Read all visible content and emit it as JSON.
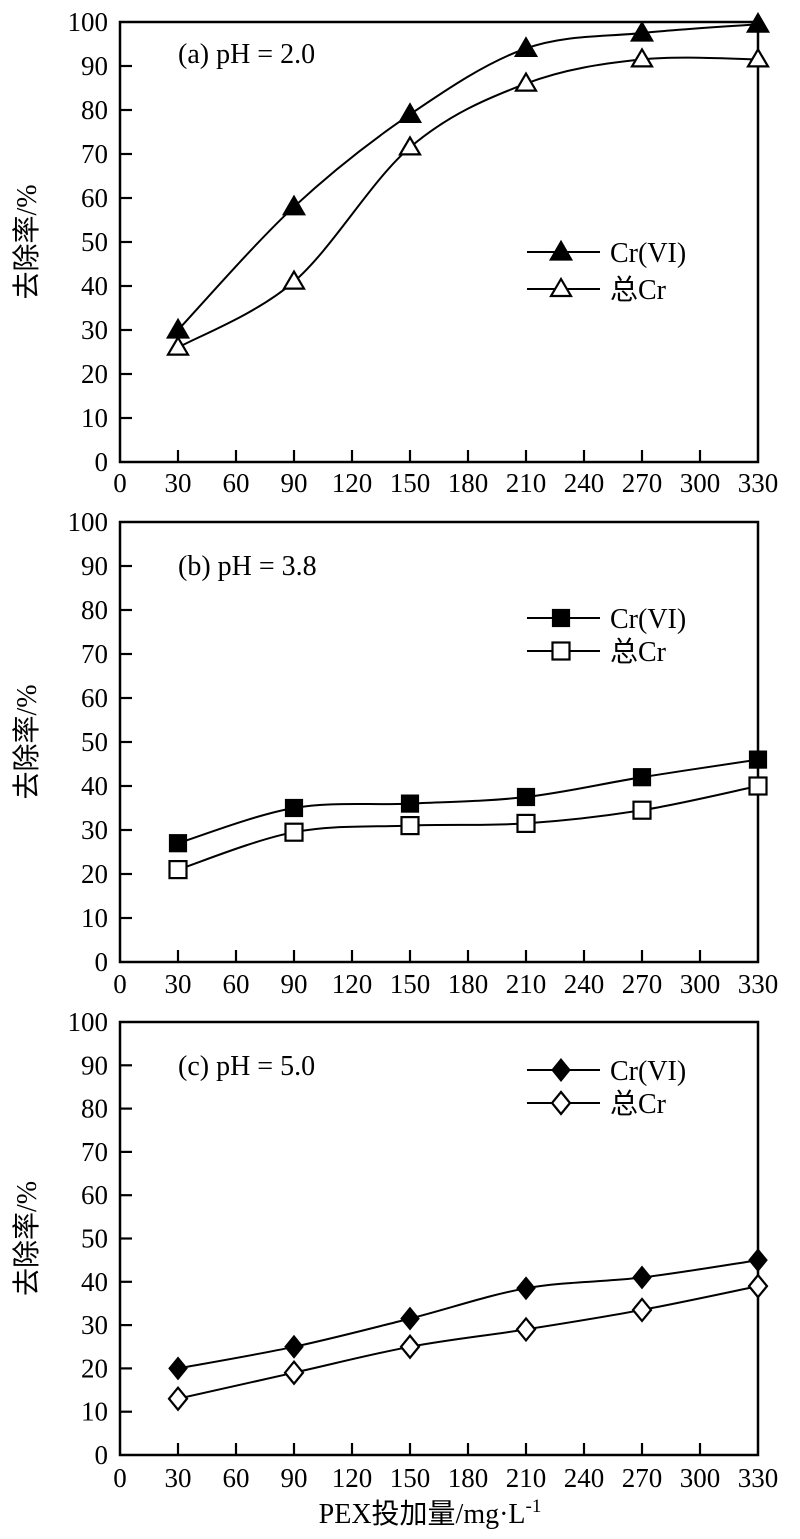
{
  "colors": {
    "ink": "#000000",
    "paper": "#ffffff"
  },
  "axes": {
    "ylabel": "去除率/%",
    "xlabel_base": "PEX投加量/mg·L",
    "xlabel_sup": "-1",
    "x_ticks": [
      0,
      30,
      60,
      90,
      120,
      150,
      180,
      210,
      240,
      270,
      300,
      330
    ],
    "y_ticks": [
      0,
      10,
      20,
      30,
      40,
      50,
      60,
      70,
      80,
      90,
      100
    ],
    "xlim": [
      0,
      330
    ],
    "ylim": [
      0,
      100
    ],
    "grid": "off"
  },
  "chart_data": [
    {
      "type": "line",
      "panel": "a",
      "title": "(a) pH = 2.0",
      "legend_position": "middle-right",
      "x": [
        30,
        90,
        150,
        210,
        270,
        330
      ],
      "series": [
        {
          "id": "cr-vi",
          "name": "Cr(VI)",
          "marker": "triangle-filled",
          "values": [
            30,
            58,
            79,
            94,
            97.5,
            99.5
          ]
        },
        {
          "id": "total-cr",
          "name": "总Cr",
          "marker": "triangle-open",
          "values": [
            26,
            41,
            71.5,
            86,
            91.5,
            91.5
          ]
        }
      ]
    },
    {
      "type": "line",
      "panel": "b",
      "title": "(b) pH = 3.8",
      "legend_position": "top-right",
      "x": [
        30,
        90,
        150,
        210,
        270,
        330
      ],
      "series": [
        {
          "id": "cr-vi",
          "name": "Cr(VI)",
          "marker": "square-filled",
          "values": [
            27,
            35,
            36,
            37.5,
            42,
            46
          ]
        },
        {
          "id": "total-cr",
          "name": "总Cr",
          "marker": "square-open",
          "values": [
            21,
            29.5,
            31,
            31.5,
            34.5,
            40
          ]
        }
      ]
    },
    {
      "type": "line",
      "panel": "c",
      "title": "(c) pH = 5.0",
      "legend_position": "top-right",
      "x": [
        30,
        90,
        150,
        210,
        270,
        330
      ],
      "series": [
        {
          "id": "cr-vi",
          "name": "Cr(VI)",
          "marker": "diamond-filled",
          "values": [
            20,
            25,
            31.5,
            38.5,
            41,
            45
          ]
        },
        {
          "id": "total-cr",
          "name": "总Cr",
          "marker": "diamond-open",
          "values": [
            13,
            19,
            25,
            29,
            33.5,
            39
          ]
        }
      ]
    }
  ]
}
